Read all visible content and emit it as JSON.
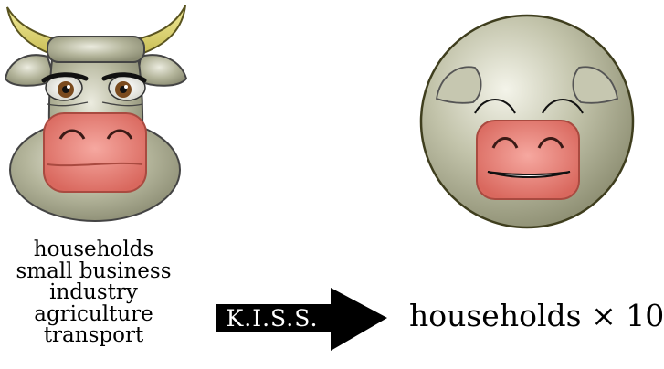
{
  "left_list": {
    "items": [
      "households",
      "small business",
      "industry",
      "agriculture",
      "transport"
    ]
  },
  "arrow": {
    "label": "K.I.S.S."
  },
  "result": {
    "text": "households × 10"
  }
}
